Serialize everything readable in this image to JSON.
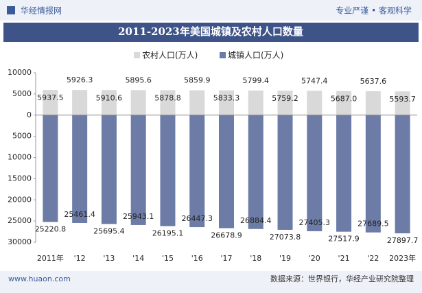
{
  "header": {
    "brand": "华经情报网",
    "slogan": "专业严谨 • 客观科学"
  },
  "chart_data": {
    "type": "bar",
    "title": "2011-2023年美国城镇及农村人口数量",
    "categories": [
      "2011年",
      "'12",
      "'13",
      "'14",
      "'15",
      "'16",
      "'17",
      "'18",
      "'19",
      "'20",
      "'21",
      "'22",
      "2023年"
    ],
    "series": [
      {
        "name": "农村人口(万人)",
        "color": "#d9d9d9",
        "values": [
          5937.5,
          5926.3,
          5910.6,
          5895.6,
          5878.8,
          5859.9,
          5833.3,
          5799.4,
          5759.2,
          5747.4,
          5687,
          5637.6,
          5593.7
        ],
        "value_labels": [
          "5937.5",
          "5926.3",
          "5910.6",
          "5895.6",
          "5878.8",
          "5859.9",
          "5833.3",
          "5799.4",
          "5759.2",
          "5747.4",
          "5687.0",
          "5637.6",
          "5593.7"
        ]
      },
      {
        "name": "城镇人口(万人)",
        "color": "#6c7ca6",
        "values": [
          -25220.8,
          -25461.4,
          -25695.4,
          -25943.1,
          -26195.1,
          -26447.3,
          -26678.9,
          -26884.4,
          -27073.8,
          -27405.3,
          -27517.9,
          -27689.5,
          -27897.7
        ],
        "value_labels": [
          "25220.8",
          "25461.4",
          "25695.4",
          "25943.1",
          "26195.1",
          "26447.3",
          "26678.9",
          "26884.4",
          "27073.8",
          "27405.3",
          "27517.9",
          "27689.5",
          "27897.7"
        ]
      }
    ],
    "ylim": [
      -30000,
      10000
    ],
    "yticks": [
      10000,
      5000,
      0,
      {
        "value": -5000,
        "label": "5000"
      },
      {
        "value": -10000,
        "label": "10000"
      },
      {
        "value": -15000,
        "label": "15000"
      },
      {
        "value": -20000,
        "label": "20000"
      },
      {
        "value": -25000,
        "label": "25000"
      },
      {
        "value": -30000,
        "label": "30000"
      }
    ],
    "grid": false
  },
  "footer": {
    "site": "www.huaon.com",
    "source": "数据来源：世界银行，华经产业研究院整理"
  }
}
